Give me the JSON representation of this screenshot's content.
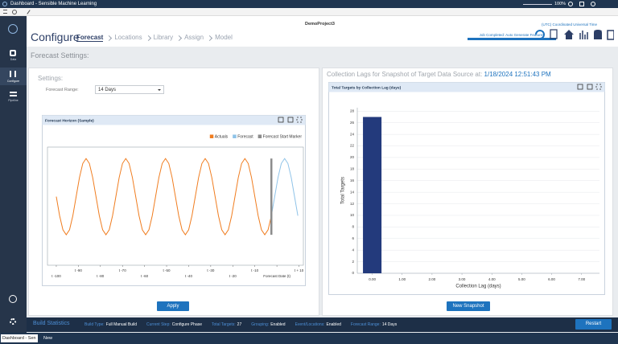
{
  "window": {
    "title": "Dashboard - Sensible Machine Learning",
    "zoom": "100%"
  },
  "sidebar": {
    "items": [
      "Data",
      "Configure",
      "Pipeline"
    ]
  },
  "header": {
    "project": "DemoProject3",
    "page": "Configure",
    "breadcrumb": [
      "Forecast",
      "Locations",
      "Library",
      "Assign",
      "Model"
    ],
    "timezone": "(UTC) Coordinated Universal Time",
    "job_status": "Job Completed: Auto Generate Features"
  },
  "section_title": "Forecast Settings:",
  "settings": {
    "title": "Settings:",
    "range_label": "Forecast Range:",
    "range_value": "14 Days",
    "apply": "Apply"
  },
  "lags": {
    "title": "Collection Lags for Snapshot of Target Data Source at:",
    "timestamp": "1/18/2024 12:51:43 PM",
    "button": "New Snapshot"
  },
  "status_bar": {
    "title": "Build Statistics",
    "items": [
      {
        "label": "Build Type:",
        "value": "Full Manual Build"
      },
      {
        "label": "Current Step:",
        "value": "Configure Phase"
      },
      {
        "label": "Total Targets:",
        "value": 27
      },
      {
        "label": "Grouping:",
        "value": "Enabled"
      },
      {
        "label": "Event/Locations:",
        "value": "Enabled"
      },
      {
        "label": "Forecast Range:",
        "value": "14 Days"
      }
    ],
    "button": "Restart"
  },
  "taskbar": {
    "tabs": [
      "Dashboard - Sen",
      "New"
    ]
  },
  "chart_data": [
    {
      "type": "line",
      "title": "Forecast Horizon (Sample)",
      "legend": "top-right",
      "xlim": [
        -104,
        12
      ],
      "ylim": [
        -1.8,
        1.3
      ],
      "xticks": [
        {
          "value": -100,
          "label": "t -100"
        },
        {
          "value": -90,
          "label": "t -90"
        },
        {
          "value": -80,
          "label": "t -80"
        },
        {
          "value": -70,
          "label": "t -70"
        },
        {
          "value": -60,
          "label": "t -60"
        },
        {
          "value": -50,
          "label": "t -50"
        },
        {
          "value": -40,
          "label": "t -40"
        },
        {
          "value": -30,
          "label": "t -30"
        },
        {
          "value": -20,
          "label": "t -20"
        },
        {
          "value": -10,
          "label": "t -10"
        },
        {
          "value": 0,
          "label": "Forecast Date (t)"
        },
        {
          "value": 10,
          "label": "t + 10"
        }
      ],
      "series": [
        {
          "name": "Actuals",
          "color": "#f07d20",
          "x": [
            -100,
            -98.5,
            -97,
            -95.5,
            -94,
            -92.5,
            -91,
            -89.5,
            -88,
            -86.5,
            -85,
            -83.5,
            -82,
            -80.5,
            -79,
            -77.5,
            -76,
            -74.5,
            -73,
            -71.5,
            -70,
            -68.5,
            -67,
            -65.5,
            -64,
            -62.5,
            -61,
            -59.5,
            -58,
            -56.5,
            -55,
            -53.5,
            -52,
            -50.5,
            -49,
            -47.5,
            -46,
            -44.5,
            -43,
            -41.5,
            -40,
            -38.5,
            -37,
            -35.5,
            -34,
            -32.5,
            -31,
            -29.5,
            -28,
            -26.5,
            -25,
            -23.5,
            -22,
            -20.5,
            -19,
            -17.5,
            -16,
            -14.5,
            -13,
            -11.5,
            -10,
            -8.5,
            -7,
            -5.5,
            -4,
            -2.5
          ],
          "values": [
            0,
            -0.5,
            -0.87,
            -1,
            -0.87,
            -0.5,
            0,
            0.5,
            0.87,
            1,
            0.87,
            0.5,
            0,
            -0.5,
            -0.87,
            -1,
            -0.87,
            -0.5,
            0,
            0.5,
            0.87,
            1,
            0.87,
            0.5,
            0,
            -0.5,
            -0.87,
            -1,
            -0.87,
            -0.5,
            0,
            0.5,
            0.87,
            1,
            0.87,
            0.5,
            0,
            -0.5,
            -0.87,
            -1,
            -0.87,
            -0.5,
            0,
            0.5,
            0.87,
            1,
            0.87,
            0.5,
            0,
            -0.5,
            -0.87,
            -1,
            -0.87,
            -0.5,
            0,
            0.5,
            0.87,
            1,
            0.87,
            0.5,
            0,
            -0.5,
            -0.87,
            -1,
            -0.87,
            -0.5
          ]
        },
        {
          "name": "Forecast",
          "color": "#8fc3e8",
          "x": [
            -2.5,
            -1,
            0.5,
            2,
            3.5,
            5,
            6.5,
            8,
            9.5
          ],
          "values": [
            -0.5,
            0,
            0.5,
            0.87,
            1,
            0.87,
            0.5,
            0,
            -0.5
          ]
        },
        {
          "name": "Forecast Start Marker",
          "color": "#8c8c8c",
          "x": [
            -2.5,
            -2.5
          ],
          "values": [
            -1,
            1
          ]
        }
      ]
    },
    {
      "type": "bar",
      "title": "Total Targets by Collection Lag (days)",
      "x_label": "Collection Lag (days)",
      "y_label": "Total Targets",
      "x": [
        0
      ],
      "values": [
        27
      ],
      "color": "#233a7c",
      "xlim": [
        -0.5,
        7.6
      ],
      "ylim": [
        0,
        28.6
      ],
      "xticks": [
        {
          "value": 0,
          "label": "0.00"
        },
        {
          "value": 1,
          "label": "1.00"
        },
        {
          "value": 2,
          "label": "2.00"
        },
        {
          "value": 3,
          "label": "3.00"
        },
        {
          "value": 4,
          "label": "4.00"
        },
        {
          "value": 5,
          "label": "5.00"
        },
        {
          "value": 6,
          "label": "6.00"
        },
        {
          "value": 7,
          "label": "7.00"
        }
      ],
      "yticks": [
        0,
        2,
        4,
        6,
        8,
        10,
        12,
        14,
        16,
        18,
        20,
        22,
        24,
        26,
        28
      ],
      "grid": true
    }
  ]
}
